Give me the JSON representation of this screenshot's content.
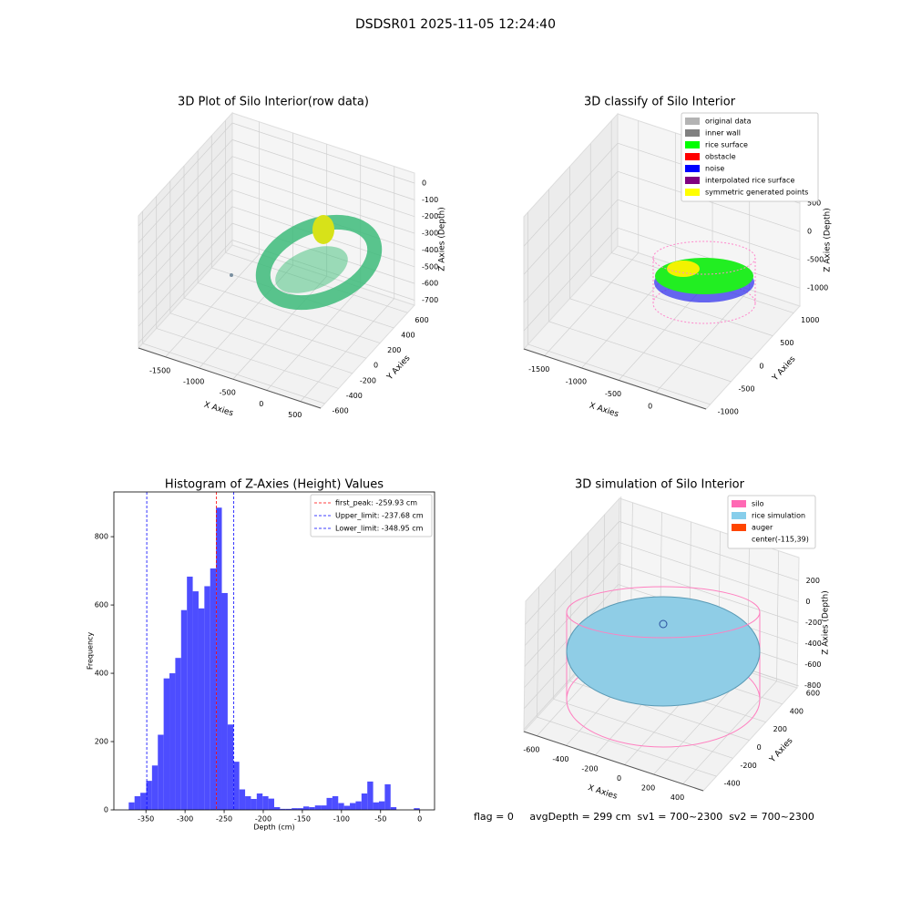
{
  "title": "DSDSR01 2025-11-05 12:24:40",
  "footer": "flag = 0     avgDepth = 299 cm  sv1 = 700~2300  sv2 = 700~2300",
  "chart_data": [
    {
      "type": "scatter3d",
      "title": "3D Plot of Silo Interior(row data)",
      "xlabel": "X Axies",
      "ylabel": "Y Axies",
      "zlabel": "Z Axies (Depth)",
      "xlim": [
        -1900,
        800
      ],
      "ylim": [
        -660,
        700
      ],
      "zlim": [
        -730,
        60
      ],
      "xticks": [
        -1500,
        -1000,
        -500,
        0,
        500
      ],
      "yticks": [
        -600,
        -400,
        -200,
        0,
        200,
        400,
        600
      ],
      "zticks": [
        -700,
        -600,
        -500,
        -400,
        -300,
        -200,
        -100,
        0
      ],
      "grid": true
    },
    {
      "type": "scatter3d",
      "title": "3D classify of Silo Interior",
      "xlabel": "X Axies",
      "ylabel": "Y Axies",
      "zlabel": "Z Axies (Depth)",
      "xlim": [
        -1780,
        680
      ],
      "ylim": [
        -1100,
        1150
      ],
      "zlim": [
        -1320,
        1020
      ],
      "xticks": [
        -1500,
        -1000,
        -500,
        0
      ],
      "yticks": [
        -1000,
        -500,
        0,
        500,
        1000
      ],
      "zticks": [
        -1000,
        -500,
        0,
        500
      ],
      "grid": true,
      "legend": "upper right",
      "series": [
        {
          "name": "original data",
          "color": "#b3b3b3"
        },
        {
          "name": "inner wall",
          "color": "#808080"
        },
        {
          "name": "rice surface",
          "color": "#00ff00"
        },
        {
          "name": "obstacle",
          "color": "#ff0000"
        },
        {
          "name": "noise",
          "color": "#0000ff"
        },
        {
          "name": "interpolated rice surface",
          "color": "#800080"
        },
        {
          "name": "symmetric generated points",
          "color": "#ffff00"
        }
      ]
    },
    {
      "type": "histogram",
      "title": "Histogram of Z-Axies (Height) Values",
      "xlabel": "Depth (cm)",
      "ylabel": "Frequency",
      "color": "#4d4dff",
      "bins": [
        -372,
        -364.56,
        -357.12,
        -349.68,
        -342.24,
        -334.8,
        -327.36,
        -319.92,
        -312.48,
        -305.04,
        -297.6,
        -290.16,
        -282.72,
        -275.28,
        -267.84,
        -260.4,
        -252.96,
        -245.52,
        -238.08,
        -230.64,
        -223.2,
        -215.76,
        -208.32,
        -200.88,
        -193.44,
        -186,
        -178.56,
        -171.12,
        -163.68,
        -156.24,
        -148.8,
        -141.36,
        -133.92,
        -126.48,
        -119.04,
        -111.6,
        -104.16,
        -96.72,
        -89.28,
        -81.84,
        -74.4,
        -66.96,
        -59.52,
        -52.08,
        -44.64,
        -37.2,
        -29.76,
        -22.32,
        -14.88,
        -7.44,
        0
      ],
      "values": [
        22,
        40,
        50,
        85,
        130,
        220,
        385,
        400,
        445,
        585,
        683,
        640,
        590,
        655,
        707,
        885,
        635,
        250,
        141,
        60,
        40,
        32,
        48,
        40,
        33,
        8,
        3,
        3,
        5,
        5,
        10,
        8,
        13,
        13,
        35,
        40,
        20,
        12,
        20,
        25,
        48,
        83,
        22,
        25,
        75,
        8,
        0,
        0,
        0,
        5
      ],
      "xlim": [
        -391,
        19
      ],
      "ylim": [
        0,
        931
      ],
      "xticks": [
        -350,
        -300,
        -250,
        -200,
        -150,
        -100,
        -50,
        0
      ],
      "yticks": [
        0,
        200,
        400,
        600,
        800
      ],
      "legend": "upper right",
      "vlines": [
        {
          "name": "first_peak: -259.93 cm",
          "value": -259.93,
          "color": "#ff0000"
        },
        {
          "name": "Upper_limit: -237.68 cm",
          "value": -237.68,
          "color": "#0000ff"
        },
        {
          "name": "Lower_limit: -348.95 cm",
          "value": -348.95,
          "color": "#0000ff"
        }
      ]
    },
    {
      "type": "scatter3d",
      "title": "3D simulation of Silo Interior",
      "xlabel": "X Axies",
      "ylabel": "Y Axies",
      "zlabel": "Z Axies (Depth)",
      "xlim": [
        -690,
        540
      ],
      "ylim": [
        -560,
        580
      ],
      "zlim": [
        -820,
        420
      ],
      "xticks": [
        -600,
        -400,
        -200,
        0,
        200,
        400
      ],
      "yticks": [
        -400,
        -200,
        0,
        200,
        400,
        600
      ],
      "zticks": [
        -800,
        -600,
        -400,
        -200,
        0,
        200
      ],
      "grid": true,
      "legend": "upper right",
      "series": [
        {
          "name": "silo",
          "color": "#ff69b4"
        },
        {
          "name": "rice simulation",
          "color": "#87ceeb"
        },
        {
          "name": "auger",
          "color": "#ff4500"
        },
        {
          "name": "center(-115,39)"
        }
      ]
    }
  ]
}
